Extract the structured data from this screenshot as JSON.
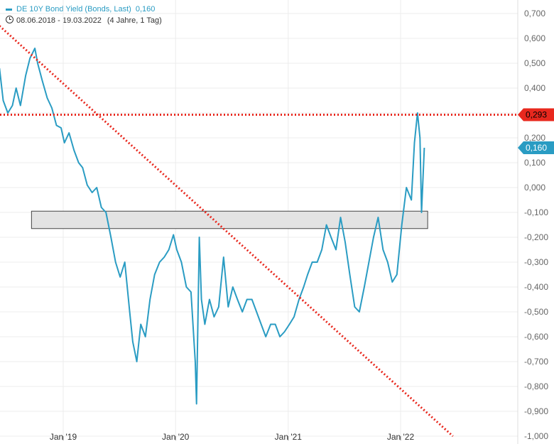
{
  "legend": {
    "series_label": "DE 10Y Bond Yield (Bonds, Last)",
    "last_value": "0,160",
    "date_range": "08.06.2018 - 19.03.2022",
    "span": "(4 Jahre, 1 Tag)"
  },
  "colors": {
    "series": "#2a9cc3",
    "trend": "#e8281e",
    "grid": "#ececec",
    "box_fill": "#e3e3e3",
    "box_stroke": "#444444"
  },
  "chart_data": {
    "type": "line",
    "ylim": [
      -1.0,
      0.72
    ],
    "xlim": [
      "2018-06-08",
      "2022-03-19"
    ],
    "y_ticks": [
      0.7,
      0.6,
      0.5,
      0.4,
      0.3,
      0.2,
      0.1,
      0.0,
      -0.1,
      -0.2,
      -0.3,
      -0.4,
      -0.5,
      -0.6,
      -0.7,
      -0.8,
      -0.9,
      -1.0
    ],
    "y_tick_labels": [
      "0,700",
      "0,600",
      "0,500",
      "0,400",
      "0,300",
      "0,200",
      "0,100",
      "0,000",
      "-0,100",
      "-0,200",
      "-0,300",
      "-0,400",
      "-0,500",
      "-0,600",
      "-0,700",
      "-0,800",
      "-0,900",
      "-1,000"
    ],
    "x_ticks": [
      "2019-01-01",
      "2020-01-01",
      "2021-01-01",
      "2022-01-01"
    ],
    "x_tick_labels": [
      "Jan '19",
      "Jan '20",
      "Jan '21",
      "Jan '22"
    ],
    "series": [
      {
        "x": [
          "2018-06-08",
          "2018-06-20",
          "2018-07-05",
          "2018-07-20",
          "2018-08-01",
          "2018-08-15",
          "2018-09-01",
          "2018-09-15",
          "2018-10-01",
          "2018-10-10",
          "2018-10-25",
          "2018-11-10",
          "2018-11-25",
          "2018-12-10",
          "2018-12-25",
          "2019-01-05",
          "2019-01-20",
          "2019-02-05",
          "2019-02-20",
          "2019-03-05",
          "2019-03-20",
          "2019-04-05",
          "2019-04-20",
          "2019-05-05",
          "2019-05-20",
          "2019-06-05",
          "2019-06-20",
          "2019-07-05",
          "2019-07-20",
          "2019-08-05",
          "2019-08-15",
          "2019-08-28",
          "2019-09-10",
          "2019-09-25",
          "2019-10-10",
          "2019-10-25",
          "2019-11-10",
          "2019-11-25",
          "2019-12-10",
          "2019-12-25",
          "2020-01-05",
          "2020-01-20",
          "2020-02-05",
          "2020-02-20",
          "2020-03-05",
          "2020-03-09",
          "2020-03-18",
          "2020-03-25",
          "2020-04-05",
          "2020-04-20",
          "2020-05-05",
          "2020-05-20",
          "2020-06-05",
          "2020-06-20",
          "2020-07-05",
          "2020-07-20",
          "2020-08-05",
          "2020-08-20",
          "2020-09-05",
          "2020-09-20",
          "2020-10-05",
          "2020-10-20",
          "2020-11-05",
          "2020-11-20",
          "2020-12-05",
          "2020-12-20",
          "2021-01-05",
          "2021-01-20",
          "2021-02-05",
          "2021-02-20",
          "2021-03-05",
          "2021-03-20",
          "2021-04-05",
          "2021-04-20",
          "2021-05-05",
          "2021-05-20",
          "2021-06-05",
          "2021-06-20",
          "2021-07-05",
          "2021-07-20",
          "2021-08-05",
          "2021-08-20",
          "2021-09-05",
          "2021-09-20",
          "2021-10-05",
          "2021-10-20",
          "2021-11-05",
          "2021-11-20",
          "2021-12-05",
          "2021-12-20",
          "2022-01-05",
          "2022-01-20",
          "2022-02-05",
          "2022-02-15",
          "2022-02-25",
          "2022-03-05",
          "2022-03-10",
          "2022-03-19"
        ],
        "y": [
          0.48,
          0.35,
          0.3,
          0.33,
          0.4,
          0.33,
          0.45,
          0.52,
          0.56,
          0.5,
          0.43,
          0.36,
          0.32,
          0.25,
          0.24,
          0.18,
          0.22,
          0.15,
          0.1,
          0.08,
          0.01,
          -0.02,
          0.0,
          -0.08,
          -0.1,
          -0.2,
          -0.3,
          -0.36,
          -0.3,
          -0.5,
          -0.62,
          -0.7,
          -0.55,
          -0.6,
          -0.45,
          -0.35,
          -0.3,
          -0.28,
          -0.25,
          -0.19,
          -0.25,
          -0.3,
          -0.4,
          -0.42,
          -0.7,
          -0.87,
          -0.2,
          -0.45,
          -0.55,
          -0.45,
          -0.52,
          -0.48,
          -0.28,
          -0.48,
          -0.4,
          -0.45,
          -0.5,
          -0.45,
          -0.45,
          -0.5,
          -0.55,
          -0.6,
          -0.55,
          -0.55,
          -0.6,
          -0.58,
          -0.55,
          -0.52,
          -0.45,
          -0.4,
          -0.35,
          -0.3,
          -0.3,
          -0.25,
          -0.15,
          -0.2,
          -0.25,
          -0.12,
          -0.22,
          -0.35,
          -0.48,
          -0.5,
          -0.4,
          -0.3,
          -0.2,
          -0.12,
          -0.25,
          -0.3,
          -0.38,
          -0.35,
          -0.15,
          0.0,
          -0.05,
          0.18,
          0.3,
          0.2,
          -0.1,
          0.16
        ]
      }
    ],
    "annotations": {
      "resistance": {
        "value": 0.293,
        "label": "0,293"
      },
      "current": {
        "value": 0.16,
        "label": "0,160"
      },
      "box": {
        "x0": "2018-09-20",
        "x1": "2022-03-30",
        "y0": -0.165,
        "y1": -0.095
      },
      "trendline": {
        "x0": "2018-06-08",
        "y0": 0.65,
        "x1": "2022-06-20",
        "y1": -1.0
      }
    }
  }
}
